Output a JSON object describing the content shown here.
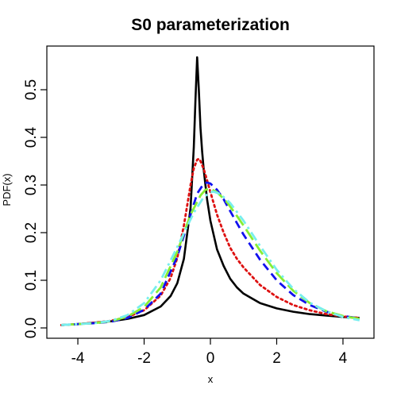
{
  "chart_data": {
    "type": "line",
    "title": "S0 parameterization",
    "xlabel": "x",
    "ylabel": "PDF(x)",
    "xlim": [
      -4.6,
      4.6
    ],
    "ylim": [
      0,
      0.57
    ],
    "xticks": [
      "-4",
      "-2",
      "0",
      "2",
      "4"
    ],
    "yticks": [
      "0.0",
      "0.1",
      "0.2",
      "0.3",
      "0.4",
      "0.5"
    ],
    "grid": false,
    "legend": "none",
    "series": [
      {
        "color": "#000000",
        "dash": "solid",
        "x": [
          -4.5,
          -4.0,
          -3.5,
          -3.0,
          -2.5,
          -2.0,
          -1.5,
          -1.2,
          -1.0,
          -0.8,
          -0.6,
          -0.5,
          -0.45,
          -0.4,
          -0.35,
          -0.3,
          -0.25,
          -0.2,
          -0.1,
          0.0,
          0.2,
          0.4,
          0.6,
          0.8,
          1.0,
          1.5,
          2.0,
          2.5,
          3.0,
          3.5,
          4.0,
          4.5
        ],
        "y": [
          0.006,
          0.008,
          0.011,
          0.014,
          0.019,
          0.027,
          0.045,
          0.067,
          0.094,
          0.145,
          0.252,
          0.38,
          0.48,
          0.568,
          0.5,
          0.42,
          0.37,
          0.33,
          0.27,
          0.225,
          0.165,
          0.13,
          0.103,
          0.085,
          0.072,
          0.052,
          0.041,
          0.034,
          0.029,
          0.026,
          0.023,
          0.021
        ]
      },
      {
        "color": "#dd1111",
        "dash": "dotted",
        "x": [
          -4.5,
          -4.0,
          -3.5,
          -3.0,
          -2.5,
          -2.0,
          -1.5,
          -1.2,
          -1.0,
          -0.8,
          -0.6,
          -0.5,
          -0.4,
          -0.35,
          -0.3,
          -0.2,
          -0.1,
          0.0,
          0.2,
          0.4,
          0.6,
          0.8,
          1.0,
          1.5,
          2.0,
          2.5,
          3.0,
          3.5,
          4.0,
          4.5
        ],
        "y": [
          0.006,
          0.008,
          0.011,
          0.015,
          0.023,
          0.037,
          0.068,
          0.105,
          0.147,
          0.215,
          0.3,
          0.335,
          0.353,
          0.355,
          0.35,
          0.333,
          0.31,
          0.285,
          0.238,
          0.2,
          0.168,
          0.145,
          0.127,
          0.09,
          0.065,
          0.048,
          0.037,
          0.029,
          0.024,
          0.021
        ]
      },
      {
        "color": "#1111ee",
        "dash": "dashed",
        "x": [
          -4.5,
          -4.0,
          -3.5,
          -3.0,
          -2.5,
          -2.0,
          -1.5,
          -1.0,
          -0.6,
          -0.4,
          -0.2,
          -0.1,
          0.0,
          0.2,
          0.4,
          0.6,
          0.8,
          1.0,
          1.5,
          2.0,
          2.5,
          3.0,
          3.5,
          4.0,
          4.5
        ],
        "y": [
          0.006,
          0.008,
          0.01,
          0.013,
          0.021,
          0.038,
          0.072,
          0.15,
          0.238,
          0.282,
          0.303,
          0.305,
          0.303,
          0.29,
          0.27,
          0.245,
          0.22,
          0.196,
          0.143,
          0.1,
          0.069,
          0.048,
          0.034,
          0.025,
          0.02
        ]
      },
      {
        "color": "#88ee33",
        "dash": "longdash",
        "x": [
          -4.5,
          -4.0,
          -3.5,
          -3.0,
          -2.5,
          -2.0,
          -1.5,
          -1.0,
          -0.6,
          -0.3,
          -0.15,
          0.0,
          0.2,
          0.5,
          0.8,
          1.0,
          1.5,
          2.0,
          2.5,
          3.0,
          3.5,
          4.0,
          4.5
        ],
        "y": [
          0.006,
          0.008,
          0.01,
          0.014,
          0.024,
          0.044,
          0.085,
          0.16,
          0.238,
          0.278,
          0.29,
          0.292,
          0.285,
          0.264,
          0.235,
          0.215,
          0.162,
          0.115,
          0.078,
          0.052,
          0.035,
          0.025,
          0.019
        ]
      },
      {
        "color": "#77eeee",
        "dash": "dashdot",
        "x": [
          -4.5,
          -4.0,
          -3.5,
          -3.0,
          -2.5,
          -2.0,
          -1.5,
          -1.0,
          -0.5,
          -0.2,
          0.0,
          0.1,
          0.3,
          0.6,
          1.0,
          1.5,
          2.0,
          2.5,
          3.0,
          3.5,
          4.0,
          4.5
        ],
        "y": [
          0.006,
          0.008,
          0.01,
          0.015,
          0.027,
          0.052,
          0.1,
          0.17,
          0.242,
          0.275,
          0.285,
          0.286,
          0.281,
          0.262,
          0.225,
          0.172,
          0.122,
          0.082,
          0.053,
          0.035,
          0.023,
          0.016
        ]
      }
    ]
  }
}
